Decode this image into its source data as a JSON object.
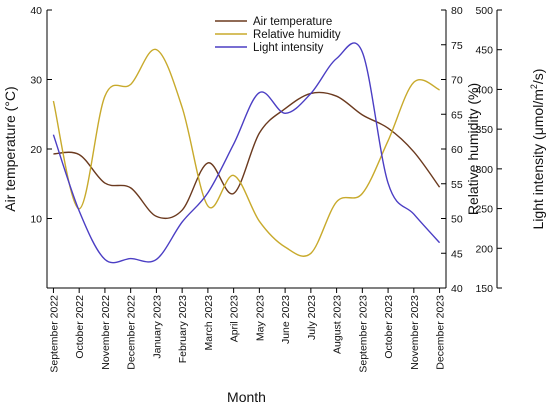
{
  "chart_data": {
    "type": "line",
    "title": "",
    "xlabel": "Month",
    "categories": [
      "September 2022",
      "October 2022",
      "November 2022",
      "December 2022",
      "January 2023",
      "February 2023",
      "March 2023",
      "April 2023",
      "May 2023",
      "June 2023",
      "July 2023",
      "August 2023",
      "September 2023",
      "October 2023",
      "November 2023",
      "December 2023"
    ],
    "axes": {
      "left": {
        "label": "Air temperature (°C)",
        "range": [
          0,
          40
        ],
        "ticks": [
          10,
          20,
          30,
          40
        ]
      },
      "right1": {
        "label": "Relative humidity  (%)",
        "range": [
          40,
          80
        ],
        "ticks": [
          40,
          45,
          50,
          55,
          60,
          65,
          70,
          75,
          80
        ]
      },
      "right2": {
        "label_parts": [
          "Light intensity (μmol/m",
          "2",
          "/s)"
        ],
        "range": [
          150,
          500
        ],
        "ticks": [
          150,
          200,
          250,
          300,
          350,
          400,
          450,
          500
        ]
      }
    },
    "legend_position": "top-center",
    "grid": false,
    "series": [
      {
        "name": "Air temperature",
        "axis": "left",
        "color": "#6b3a1f",
        "values": [
          19.3,
          19.2,
          15.1,
          14.4,
          10.3,
          11.2,
          18.0,
          13.6,
          22.3,
          25.8,
          28.0,
          27.6,
          24.9,
          23.0,
          19.6,
          14.5
        ]
      },
      {
        "name": "Relative humidity",
        "axis": "right1",
        "color": "#c8aa2c",
        "values": [
          66.9,
          51.4,
          67.6,
          69.3,
          74.3,
          66.0,
          51.8,
          56.2,
          49.6,
          45.9,
          45.0,
          52.4,
          53.6,
          61.2,
          69.6,
          68.5
        ]
      },
      {
        "name": "Light intensity",
        "axis": "right2",
        "color": "#4b3ec4",
        "values": [
          343,
          247,
          186,
          187,
          186,
          233,
          270,
          331,
          396,
          370,
          395,
          439,
          447,
          282,
          243,
          207
        ]
      }
    ]
  }
}
